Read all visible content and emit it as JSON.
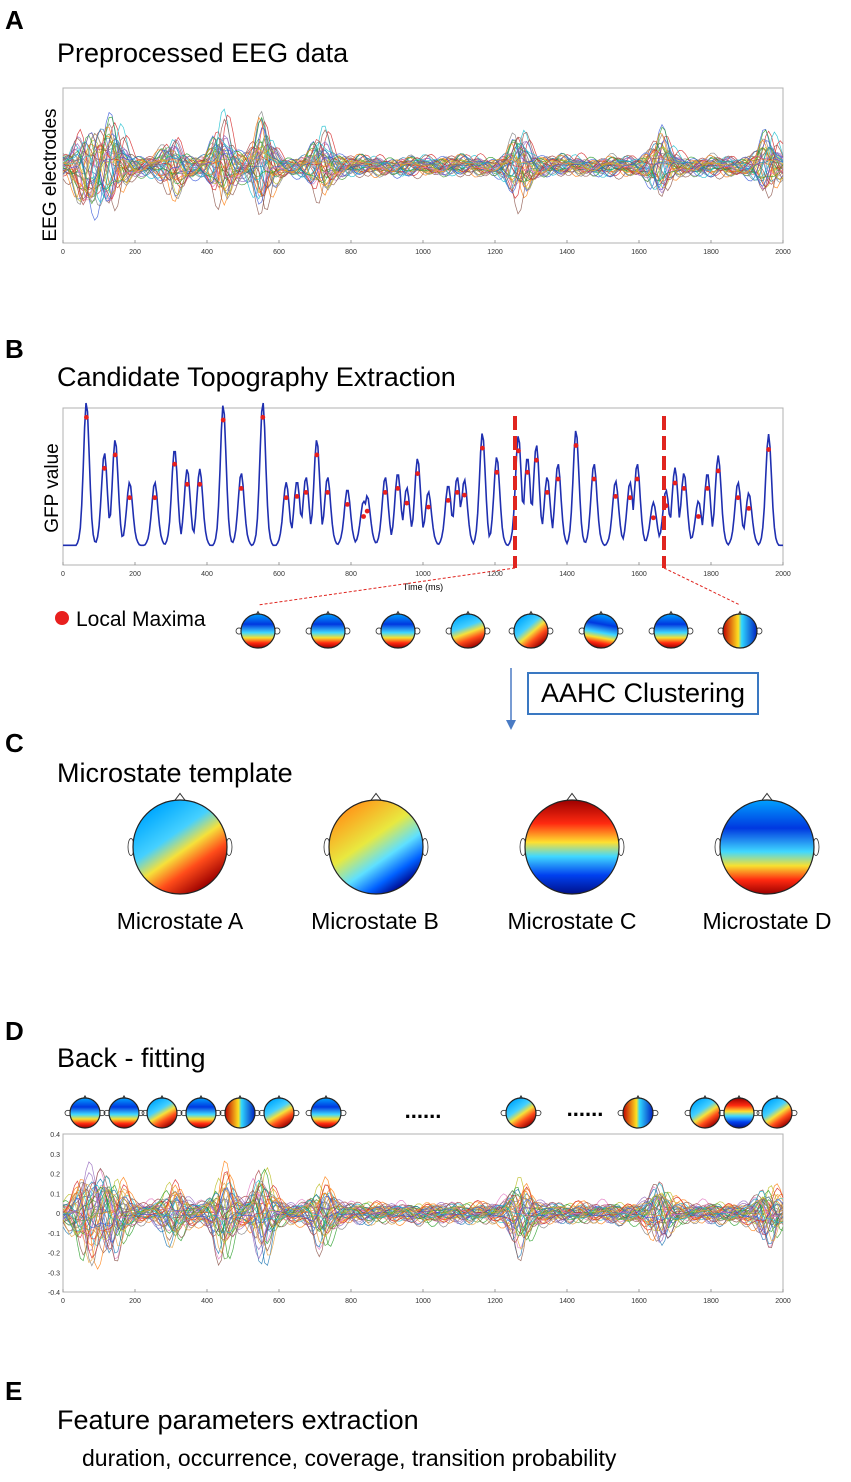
{
  "panels": {
    "a": {
      "letter": "A",
      "title": "Preprocessed EEG data",
      "ylabel": "EEG electrodes",
      "xticks": [
        "0",
        "200",
        "400",
        "600",
        "800",
        "1000",
        "1200",
        "1400",
        "1600",
        "1800",
        "2000"
      ]
    },
    "b": {
      "letter": "B",
      "title": "Candidate Topography Extraction",
      "ylabel": "GFP value",
      "xlabel": "Time (ms)",
      "xticks": [
        "0",
        "200",
        "400",
        "600",
        "800",
        "1000",
        "1200",
        "1400",
        "1600",
        "1800",
        "2000"
      ],
      "legend": "Local Maxima",
      "clustering_label": "AAHC Clustering"
    },
    "c": {
      "letter": "C",
      "title": "Microstate template",
      "microstates": [
        {
          "label": "Microstate A"
        },
        {
          "label": "Microstate B"
        },
        {
          "label": "Microstate C"
        },
        {
          "label": "Microstate D"
        }
      ]
    },
    "d": {
      "letter": "D",
      "title": "Back - fitting",
      "ellipsis": "......",
      "xticks": [
        "0",
        "200",
        "400",
        "600",
        "800",
        "1000",
        "1200",
        "1400",
        "1600",
        "1800",
        "2000"
      ],
      "yticks": [
        "0.4",
        "0.3",
        "0.2",
        "0.1",
        "0",
        "-0.1",
        "-0.2",
        "-0.3",
        "-0.4"
      ]
    },
    "e": {
      "letter": "E",
      "title": "Feature parameters extraction",
      "subtitle": "duration, occurrence, coverage, transition probability"
    }
  },
  "colors": {
    "gfp_line": "#1f2fb0",
    "maxima": "#e8201e",
    "divider": "#e0251f",
    "box_border": "#3a78c2"
  },
  "chart_data": [
    {
      "type": "line",
      "title": "Preprocessed EEG data",
      "xlabel": "",
      "ylabel": "EEG electrodes",
      "xlim": [
        0,
        2000
      ],
      "series_note": "multi-channel EEG traces (many electrodes)"
    },
    {
      "type": "line",
      "title": "Candidate Topography Extraction",
      "xlabel": "Time (ms)",
      "ylabel": "GFP value",
      "xlim": [
        0,
        2000
      ],
      "maxima_x": [
        65,
        115,
        145,
        185,
        255,
        310,
        345,
        380,
        445,
        495,
        555,
        620,
        650,
        675,
        705,
        735,
        790,
        835,
        845,
        895,
        930,
        955,
        985,
        1015,
        1070,
        1095,
        1115,
        1165,
        1205,
        1265,
        1290,
        1315,
        1345,
        1375,
        1425,
        1475,
        1535,
        1575,
        1595,
        1640,
        1675,
        1700,
        1725,
        1765,
        1790,
        1820,
        1875,
        1905,
        1960
      ]
    },
    {
      "type": "line",
      "title": "Back - fitting",
      "xlim": [
        0,
        2000
      ],
      "ylim": [
        -0.4,
        0.4
      ],
      "series_note": "multi-channel EEG traces"
    }
  ]
}
